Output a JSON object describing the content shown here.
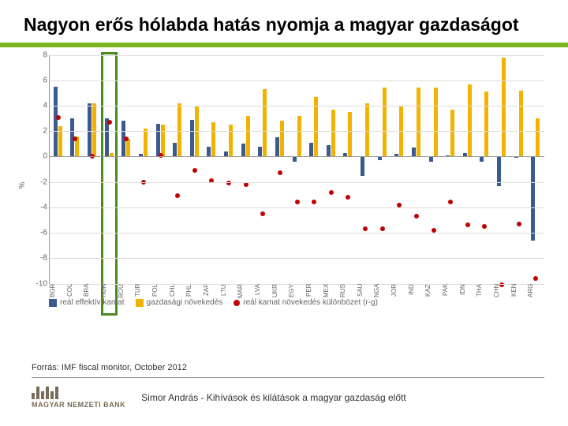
{
  "title": "Nagyon erős hólabda hatás nyomja a magyar gazdaságot",
  "accent_color": "#7ab51d",
  "chart": {
    "type": "bar+scatter",
    "ylabel": "%",
    "ylim": [
      -10,
      8
    ],
    "ytick_step": 2,
    "yticks": [
      8,
      6,
      4,
      2,
      0,
      -2,
      -4,
      -6,
      -8,
      -10
    ],
    "grid_color": "#dddddd",
    "axis_color": "#999999",
    "bar1_color": "#3b5a8f",
    "bar2_color": "#f2b200",
    "marker_color": "#c00000",
    "highlight_color": "#4a8a1f",
    "categories": [
      "BGR",
      "COL",
      "BRA",
      "HUN",
      "ROU",
      "TUR",
      "POL",
      "CHL",
      "PHL",
      "ZAF",
      "LTU",
      "MAR",
      "LVA",
      "UKR",
      "EGY",
      "PER",
      "MEX",
      "RUS",
      "SAU",
      "NGA",
      "JOR",
      "IND",
      "KAZ",
      "PAK",
      "IDN",
      "THA",
      "CHN",
      "KEN",
      "ARG"
    ],
    "series1": [
      5.5,
      3.0,
      4.2,
      3.0,
      2.8,
      0.2,
      2.6,
      1.1,
      2.9,
      0.8,
      0.4,
      1.0,
      0.8,
      1.5,
      -0.4,
      1.1,
      0.9,
      0.3,
      -1.5,
      -0.3,
      0.2,
      0.7,
      -0.4,
      0.1,
      0.3,
      -0.4,
      -2.3,
      -0.1,
      -6.6
    ],
    "series2": [
      2.4,
      1.6,
      4.2,
      0.3,
      1.4,
      2.2,
      2.5,
      4.2,
      4.0,
      2.7,
      2.5,
      3.2,
      5.3,
      2.8,
      3.2,
      4.7,
      3.7,
      3.5,
      4.2,
      5.4,
      4.0,
      5.4,
      5.4,
      3.7,
      5.7,
      5.1,
      7.8,
      5.2,
      3.0
    ],
    "series3": [
      3.1,
      1.4,
      0.0,
      2.7,
      1.4,
      -2.0,
      0.1,
      -3.1,
      -1.1,
      -1.9,
      -2.1,
      -2.2,
      -4.5,
      -1.3,
      -3.6,
      -3.6,
      -2.8,
      -3.2,
      -5.7,
      -5.7,
      -3.8,
      -4.7,
      -5.8,
      -3.6,
      -5.4,
      -5.5,
      -10.1,
      -5.3,
      -9.6
    ],
    "highlight_index": 3,
    "legend": [
      {
        "label": "reál effektív kamat",
        "kind": "box",
        "color": "#3b5a8f"
      },
      {
        "label": "gazdasági növekedés",
        "kind": "box",
        "color": "#f2b200"
      },
      {
        "label": "reál kamat növekedés különbözet (r-g)",
        "kind": "dot",
        "color": "#c00000"
      }
    ]
  },
  "source": "Forrás: IMF fiscal monitor, October 2012",
  "logo": {
    "bar_color": "#7a6a58",
    "text_color": "#7a6a58",
    "text": "MAGYAR NEMZETI BANK",
    "bars": [
      8,
      16,
      10,
      16,
      10,
      16
    ]
  },
  "footer_text": "Simor András - Kihívások és kilátások a magyar gazdaság előtt"
}
